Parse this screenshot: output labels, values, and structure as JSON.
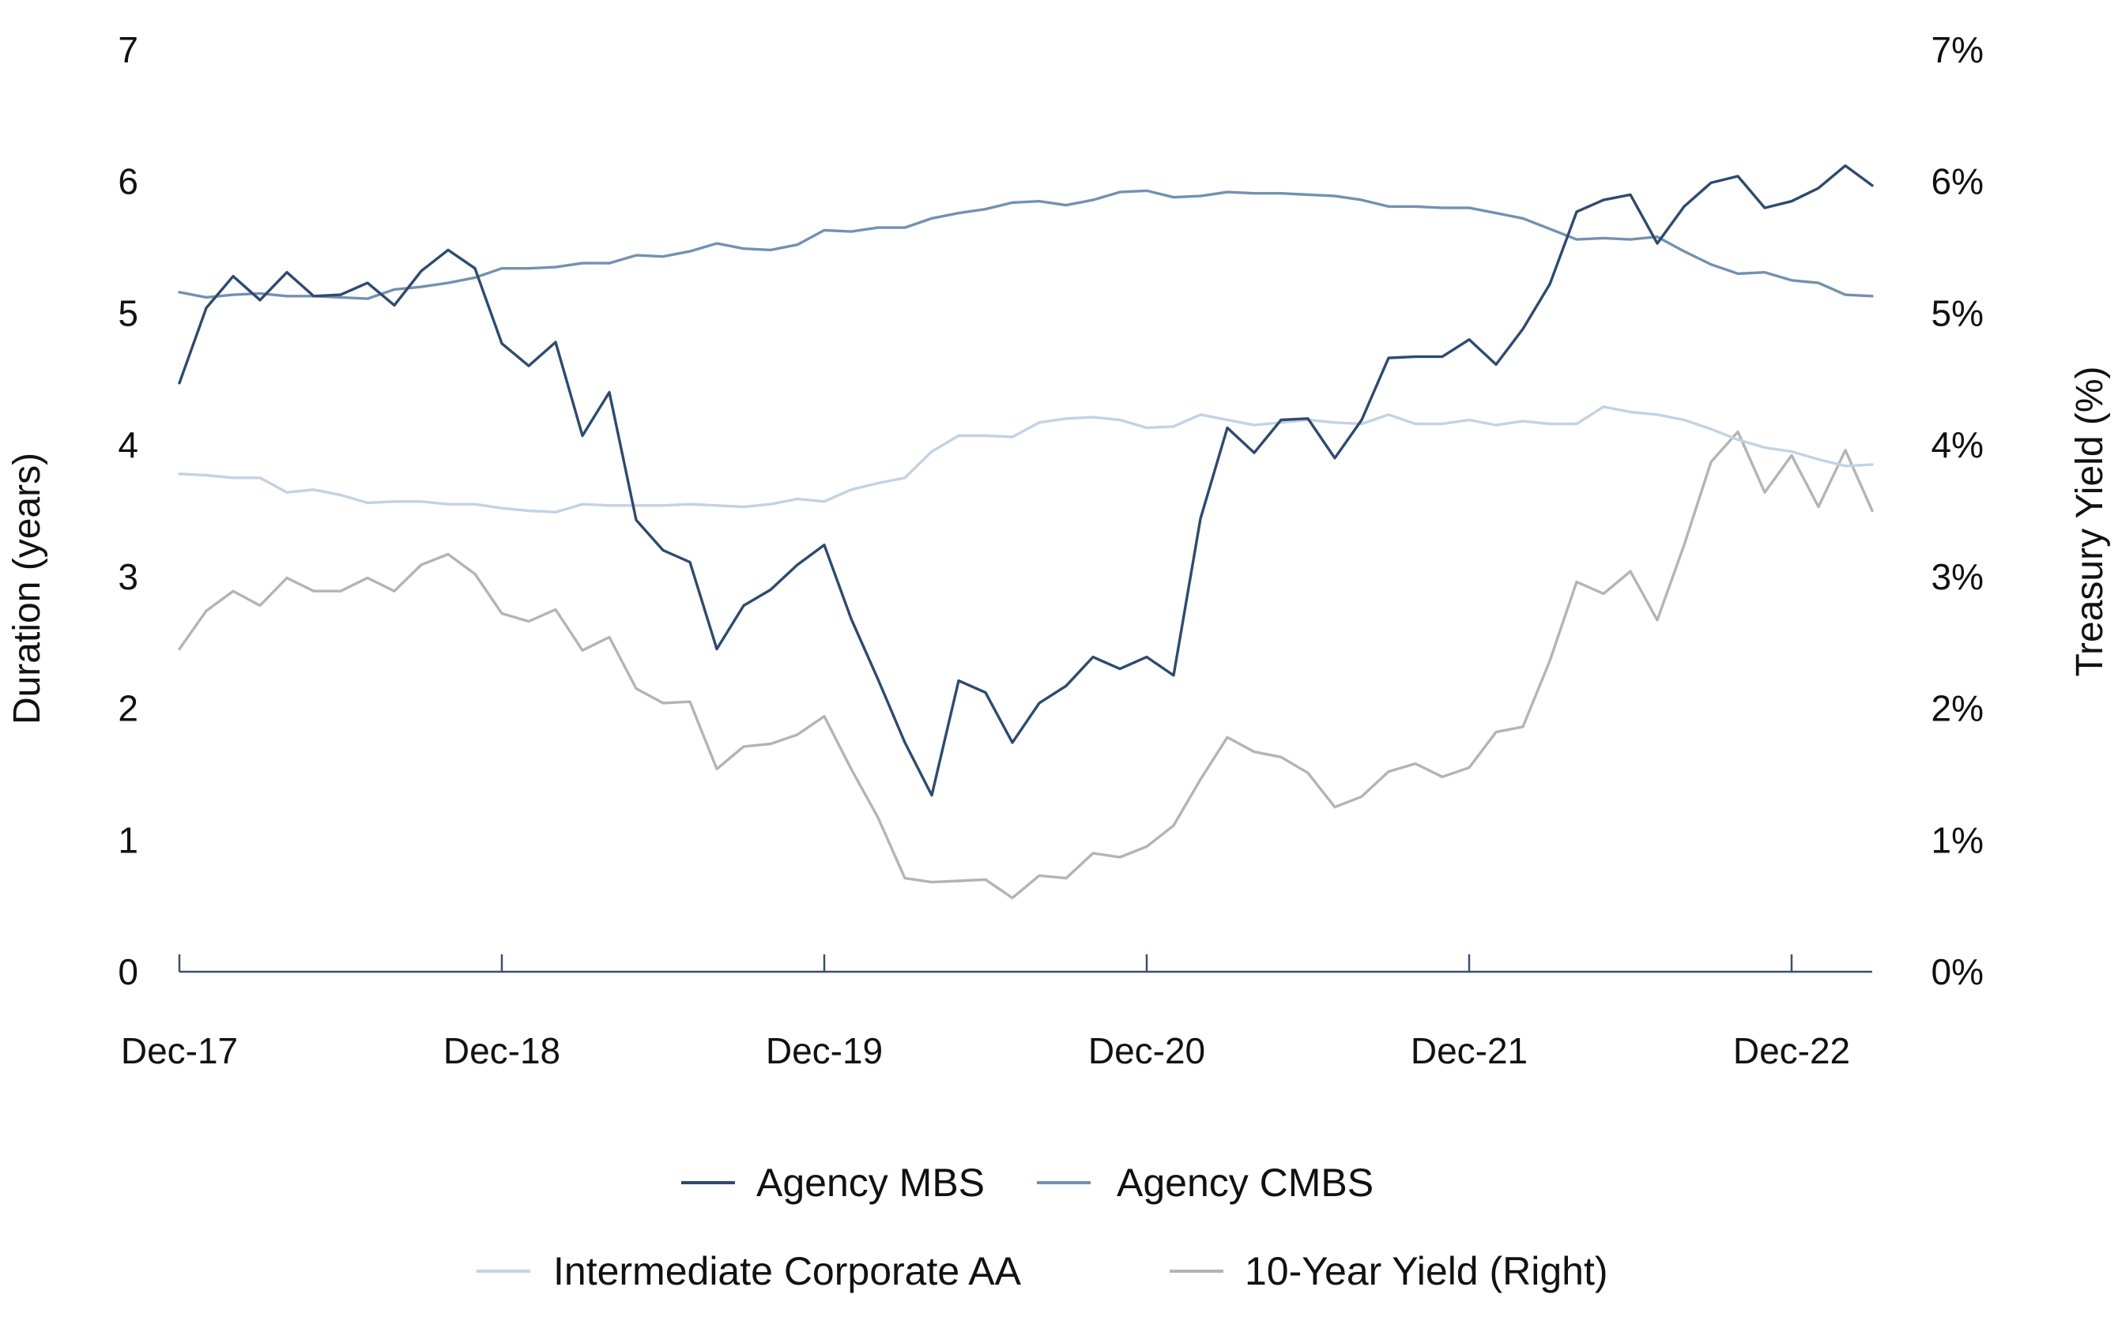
{
  "chart_data": {
    "type": "line",
    "title": "",
    "x_tick_labels": [
      "Dec-17",
      "Dec-18",
      "Dec-19",
      "Dec-20",
      "Dec-21",
      "Dec-22"
    ],
    "left_axis": {
      "label": "Duration (years)",
      "range": [
        0,
        7
      ],
      "ticks": [
        "0",
        "1",
        "2",
        "3",
        "4",
        "5",
        "6",
        "7"
      ]
    },
    "right_axis": {
      "label": "Treasury Yield (%)",
      "range": [
        0,
        7
      ],
      "ticks": [
        "0%",
        "1%",
        "2%",
        "3%",
        "4%",
        "5%",
        "6%",
        "7%"
      ]
    },
    "x_range_months": [
      0,
      63
    ],
    "legend": {
      "position": "bottom"
    },
    "series": [
      {
        "name": "Agency MBS",
        "axis": "left",
        "color": "#2e4a6e",
        "values": [
          4.47,
          5.04,
          5.28,
          5.1,
          5.31,
          5.13,
          5.14,
          5.23,
          5.06,
          5.32,
          5.48,
          5.34,
          4.77,
          4.6,
          4.78,
          4.07,
          4.4,
          3.43,
          3.2,
          3.11,
          2.45,
          2.78,
          2.9,
          3.09,
          3.24,
          2.68,
          2.22,
          1.74,
          1.34,
          2.21,
          2.12,
          1.74,
          2.04,
          2.17,
          2.39,
          2.3,
          2.39,
          2.25,
          3.44,
          4.13,
          3.94,
          4.19,
          4.2,
          3.9,
          4.19,
          4.66,
          4.67,
          4.67,
          4.8,
          4.61,
          4.88,
          5.22,
          5.77,
          5.86,
          5.9,
          5.53,
          5.81,
          5.99,
          6.04,
          5.8,
          5.85,
          5.95,
          6.12,
          5.97
        ]
      },
      {
        "name": "Agency CMBS",
        "axis": "left",
        "color": "#7391b0",
        "values": [
          5.16,
          5.12,
          5.14,
          5.15,
          5.13,
          5.13,
          5.12,
          5.11,
          5.18,
          5.2,
          5.23,
          5.27,
          5.34,
          5.34,
          5.35,
          5.38,
          5.38,
          5.44,
          5.43,
          5.47,
          5.53,
          5.49,
          5.48,
          5.52,
          5.63,
          5.62,
          5.65,
          5.65,
          5.72,
          5.76,
          5.79,
          5.84,
          5.85,
          5.82,
          5.86,
          5.92,
          5.93,
          5.88,
          5.89,
          5.92,
          5.91,
          5.91,
          5.9,
          5.89,
          5.86,
          5.81,
          5.81,
          5.8,
          5.8,
          5.76,
          5.72,
          5.64,
          5.56,
          5.57,
          5.56,
          5.58,
          5.47,
          5.37,
          5.3,
          5.31,
          5.25,
          5.23,
          5.14,
          5.13
        ]
      },
      {
        "name": "Intermediate Corporate AA",
        "axis": "left",
        "color": "#c3d2e3",
        "values": [
          3.78,
          3.77,
          3.75,
          3.75,
          3.64,
          3.66,
          3.62,
          3.56,
          3.57,
          3.57,
          3.55,
          3.55,
          3.52,
          3.5,
          3.49,
          3.55,
          3.54,
          3.54,
          3.54,
          3.55,
          3.54,
          3.53,
          3.55,
          3.59,
          3.57,
          3.66,
          3.71,
          3.75,
          3.95,
          4.07,
          4.07,
          4.06,
          4.17,
          4.2,
          4.21,
          4.19,
          4.13,
          4.14,
          4.23,
          4.19,
          4.15,
          4.17,
          4.19,
          4.17,
          4.16,
          4.23,
          4.16,
          4.16,
          4.19,
          4.15,
          4.18,
          4.16,
          4.16,
          4.29,
          4.25,
          4.23,
          4.19,
          4.12,
          4.04,
          3.98,
          3.95,
          3.89,
          3.84,
          3.85
        ]
      },
      {
        "name": "10-Year Yield (Right)",
        "axis": "right",
        "color": "#b4b4b4",
        "values": [
          2.45,
          2.74,
          2.89,
          2.78,
          2.99,
          2.89,
          2.89,
          2.99,
          2.89,
          3.09,
          3.17,
          3.02,
          2.72,
          2.66,
          2.75,
          2.44,
          2.54,
          2.15,
          2.04,
          2.05,
          1.54,
          1.71,
          1.73,
          1.8,
          1.94,
          1.54,
          1.17,
          0.71,
          0.68,
          0.69,
          0.7,
          0.56,
          0.73,
          0.71,
          0.9,
          0.87,
          0.95,
          1.11,
          1.46,
          1.78,
          1.67,
          1.63,
          1.51,
          1.25,
          1.33,
          1.52,
          1.58,
          1.48,
          1.55,
          1.82,
          1.86,
          2.36,
          2.96,
          2.87,
          3.04,
          2.67,
          3.24,
          3.87,
          4.1,
          3.64,
          3.92,
          3.53,
          3.96,
          3.5
        ]
      }
    ]
  }
}
